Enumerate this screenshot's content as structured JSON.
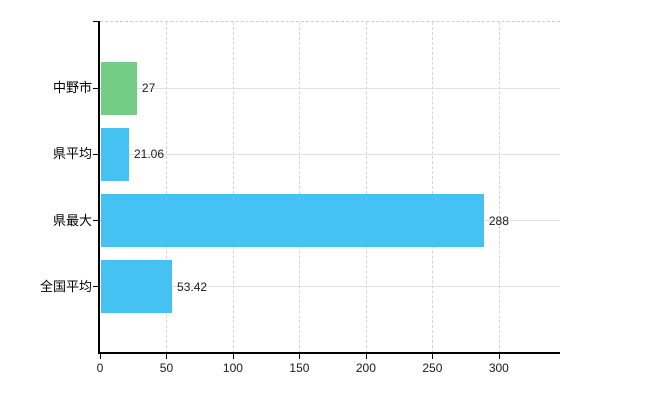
{
  "chart_data": {
    "type": "bar",
    "orientation": "horizontal",
    "title": "",
    "categories": [
      "中野市",
      "県平均",
      "県最大",
      "全国平均"
    ],
    "values": [
      27,
      21.06,
      288,
      53.42
    ],
    "value_labels": [
      "27",
      "21.06",
      "288",
      "53.42"
    ],
    "bar_colors": [
      "#73cd85",
      "#45c2f1",
      "#45c2f1",
      "#45c2f1"
    ],
    "x_ticks": [
      0,
      50,
      100,
      150,
      200,
      250,
      300
    ],
    "x_tick_labels": [
      "0",
      "50",
      "100",
      "150",
      "200",
      "250",
      "300"
    ],
    "xlim": [
      0,
      346
    ],
    "grid": true,
    "legend": "none",
    "colors": {
      "axis": "#000000",
      "h_gridline": "#dde2dd",
      "v_gridline": "#d7d2d8",
      "background": "#ffffff",
      "green_bar": "#73cd85",
      "blue_bar": "#45c2f1"
    }
  }
}
